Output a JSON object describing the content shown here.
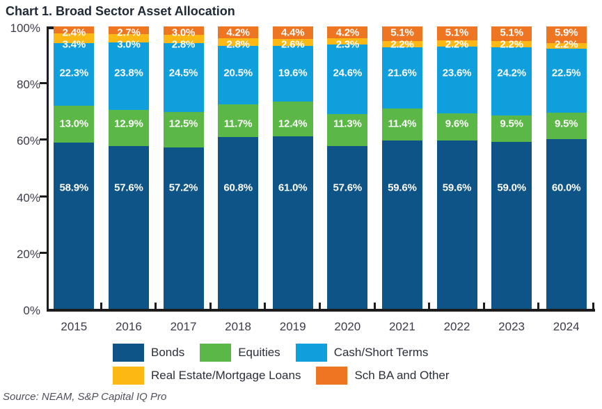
{
  "title": "Chart 1. Broad Sector Asset Allocation",
  "source": "Source: NEAM, S&P Capital IQ Pro",
  "colors": {
    "bonds": "#0e5487",
    "equities": "#5bb847",
    "cash": "#0f9fdc",
    "real_estate": "#fdb813",
    "sch_ba": "#ee7623",
    "axis_line": "#1c1c1c",
    "axis_text": "#3e3b49",
    "value_label_text": "#ffffff"
  },
  "chart_data": {
    "type": "bar",
    "stacked": true,
    "title": "Chart 1. Broad Sector Asset Allocation",
    "categories": [
      "2015",
      "2016",
      "2017",
      "2018",
      "2019",
      "2020",
      "2021",
      "2022",
      "2023",
      "2024"
    ],
    "series": [
      {
        "name": "Bonds",
        "color_key": "bonds",
        "values": [
          58.9,
          57.6,
          57.2,
          60.8,
          61.0,
          57.6,
          59.6,
          59.6,
          59.0,
          60.0
        ]
      },
      {
        "name": "Equities",
        "color_key": "equities",
        "values": [
          13.0,
          12.9,
          12.5,
          11.7,
          12.4,
          11.3,
          11.4,
          9.6,
          9.5,
          9.5
        ]
      },
      {
        "name": "Cash/Short Terms",
        "color_key": "cash",
        "values": [
          22.3,
          23.8,
          24.5,
          20.5,
          19.6,
          24.6,
          21.6,
          23.6,
          24.2,
          22.5
        ]
      },
      {
        "name": "Real Estate/Mortgage Loans",
        "color_key": "real_estate",
        "values": [
          3.4,
          3.0,
          2.8,
          2.8,
          2.6,
          2.3,
          2.2,
          2.2,
          2.2,
          2.2
        ]
      },
      {
        "name": "Sch BA and Other",
        "color_key": "sch_ba",
        "values": [
          2.4,
          2.7,
          3.0,
          4.2,
          4.4,
          4.2,
          5.1,
          5.1,
          5.1,
          5.9
        ]
      }
    ],
    "y_axis": {
      "min": 0,
      "max": 100,
      "tick_values": [
        0,
        20,
        40,
        60,
        80,
        100
      ],
      "tick_labels": [
        "0%",
        "20%",
        "40%",
        "60%",
        "80%",
        "100%"
      ]
    },
    "value_suffix": "%",
    "grid": false,
    "legend_position": "bottom",
    "legend_rows": [
      [
        0,
        1,
        2
      ],
      [
        3,
        4
      ]
    ]
  }
}
